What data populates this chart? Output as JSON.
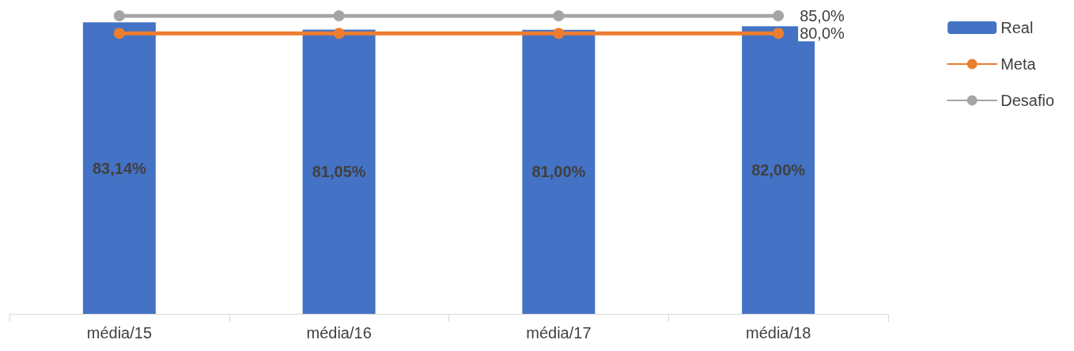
{
  "chart_data": {
    "type": "bar",
    "categories": [
      "média/15",
      "média/16",
      "média/17",
      "média/18"
    ],
    "series": [
      {
        "name": "Real",
        "color": "#4472c4",
        "values": [
          83.14,
          81.05,
          81.0,
          82.0
        ],
        "value_labels": [
          "83,14%",
          "81,05%",
          "81,00%",
          "82,00%"
        ]
      },
      {
        "name": "Meta",
        "type": "line",
        "color": "#ed7d31",
        "values": [
          80.0,
          80.0,
          80.0,
          80.0
        ],
        "value_labels": [
          null,
          null,
          null,
          "80,0%"
        ]
      },
      {
        "name": "Desafio",
        "type": "line",
        "color": "#a5a5a5",
        "values": [
          85.0,
          85.0,
          85.0,
          85.0
        ],
        "value_labels": [
          null,
          null,
          null,
          "85,0%"
        ]
      }
    ],
    "tick_labels": "x",
    "grid": false,
    "legend": "right",
    "marker": "circle",
    "line_style": "solid"
  }
}
